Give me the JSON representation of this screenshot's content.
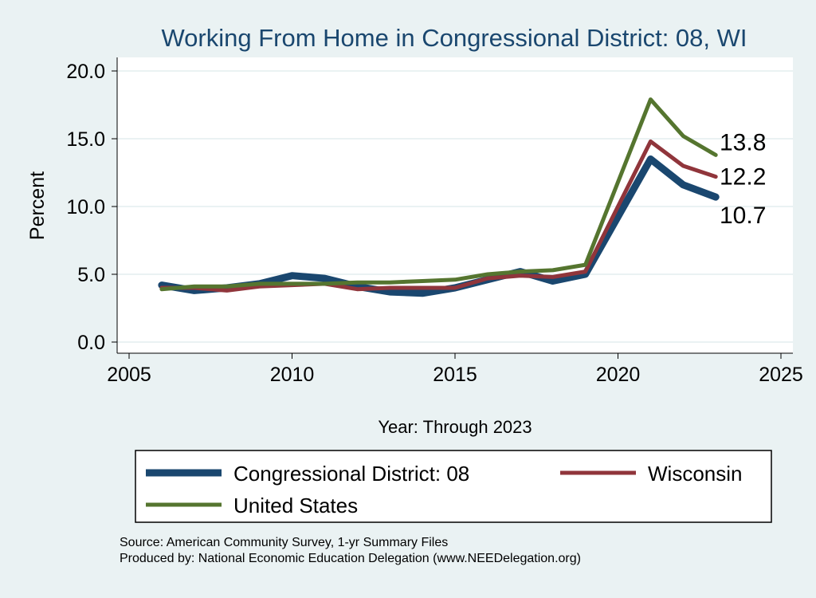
{
  "chart_data": {
    "type": "line",
    "title": "Working From Home in Congressional District: 08, WI",
    "xlabel": "Year: Through 2023",
    "ylabel": "Percent",
    "xlim": [
      2005,
      2025
    ],
    "ylim": [
      0,
      20
    ],
    "xticks": [
      2005,
      2010,
      2015,
      2020,
      2025
    ],
    "yticks": [
      "0.0",
      "5.0",
      "10.0",
      "15.0",
      "20.0"
    ],
    "grid": true,
    "legend_placement": "bottom",
    "x": [
      2006,
      2007,
      2008,
      2009,
      2010,
      2011,
      2012,
      2013,
      2014,
      2015,
      2016,
      2017,
      2018,
      2019,
      2021,
      2022,
      2023
    ],
    "series": [
      {
        "name": "Congressional District: 08",
        "color": "#1a476f",
        "values": [
          4.2,
          3.8,
          4.0,
          4.3,
          4.9,
          4.7,
          4.1,
          3.7,
          3.6,
          4.0,
          4.6,
          5.2,
          4.5,
          5.0,
          13.5,
          11.6,
          10.7
        ],
        "end_label": "10.7"
      },
      {
        "name": "Wisconsin",
        "color": "#90353b",
        "values": [
          4.0,
          4.0,
          3.8,
          4.1,
          4.2,
          4.3,
          3.9,
          4.0,
          4.0,
          4.0,
          4.7,
          4.9,
          4.8,
          5.2,
          14.8,
          13.0,
          12.2
        ],
        "end_label": "12.2"
      },
      {
        "name": "United States",
        "color": "#55752f",
        "values": [
          3.9,
          4.1,
          4.1,
          4.3,
          4.3,
          4.3,
          4.4,
          4.4,
          4.5,
          4.6,
          5.0,
          5.2,
          5.3,
          5.7,
          17.9,
          15.2,
          13.8
        ],
        "end_label": "13.8"
      }
    ]
  },
  "notes": {
    "source": "Source: American Community Survey, 1-yr Summary Files",
    "produced": "Produced by: National Economic Education Delegation (www.NEEDelegation.org)"
  }
}
